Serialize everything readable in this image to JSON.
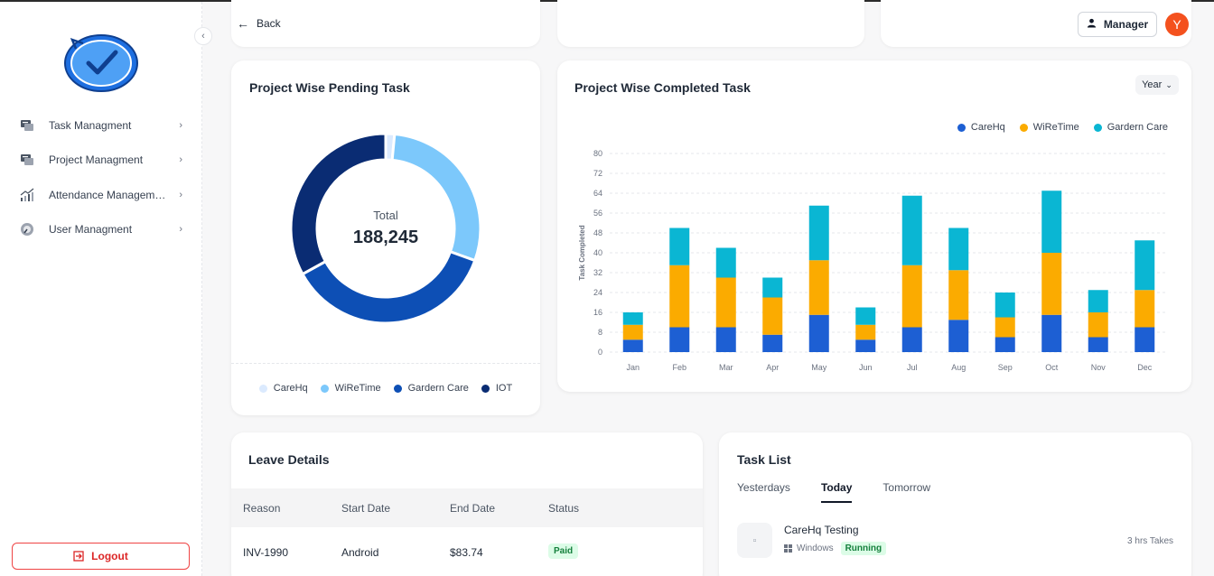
{
  "header": {
    "back_label": "Back",
    "role_label": "Manager",
    "avatar_initial": "Y"
  },
  "sidebar": {
    "items": [
      {
        "label": "Task Managment",
        "icon": "task-icon"
      },
      {
        "label": "Project Managment",
        "icon": "project-icon"
      },
      {
        "label": "Attendance Management",
        "icon": "attendance-chart-icon"
      },
      {
        "label": "User Managment",
        "icon": "user-gauge-icon"
      }
    ],
    "logout_label": "Logout"
  },
  "pending": {
    "title": "Project Wise Pending Task",
    "total_label": "Total",
    "total_value": "188,245",
    "legend": [
      "CareHq",
      "WiReTime",
      "Gardern Care",
      "IOT"
    ]
  },
  "completed": {
    "title": "Project Wise Completed Task",
    "period": "Year",
    "legend": [
      "CareHq",
      "WiReTime",
      "Gardern Care"
    ]
  },
  "chart_data": [
    {
      "type": "pie",
      "title": "Project Wise Pending Task",
      "categories": [
        "CareHq",
        "WiReTime",
        "Gardern Care",
        "IOT"
      ],
      "values": [
        1.5,
        29,
        36.5,
        33
      ],
      "colors": [
        "#dbeafe",
        "#7cc8fb",
        "#0d4fb5",
        "#0a2c73"
      ],
      "center_label": "Total",
      "center_value": "188,245",
      "legend": "bottom"
    },
    {
      "type": "bar",
      "stacked": true,
      "title": "Project Wise Completed Task",
      "ylabel": "Task Completed",
      "categories": [
        "Jan",
        "Feb",
        "Mar",
        "Apr",
        "May",
        "Jun",
        "Jul",
        "Aug",
        "Sep",
        "Oct",
        "Nov",
        "Dec"
      ],
      "series": [
        {
          "name": "CareHq",
          "color": "#1d5fd3",
          "values": [
            5,
            10,
            10,
            7,
            15,
            5,
            10,
            13,
            6,
            15,
            6,
            10
          ]
        },
        {
          "name": "WiReTime",
          "color": "#fbab00",
          "values": [
            6,
            25,
            20,
            15,
            22,
            6,
            25,
            20,
            8,
            25,
            10,
            15
          ]
        },
        {
          "name": "Gardern Care",
          "color": "#0ab6d3",
          "values": [
            5,
            15,
            12,
            8,
            22,
            7,
            28,
            17,
            10,
            25,
            9,
            20
          ]
        }
      ],
      "ylim": [
        0,
        80
      ],
      "yticks": [
        0,
        8,
        16,
        24,
        32,
        40,
        48,
        56,
        64,
        72,
        80
      ],
      "grid": true,
      "legend": "top-right"
    }
  ],
  "leave": {
    "title": "Leave Details",
    "columns": [
      "Reason",
      "Start Date",
      "End Date",
      "Status"
    ],
    "rows": [
      {
        "reason": "INV-1990",
        "start": "Android",
        "end": "$83.74",
        "status": "Paid"
      }
    ]
  },
  "tasks": {
    "title": "Task List",
    "tabs": [
      "Yesterdays",
      "Today",
      "Tomorrow"
    ],
    "active_tab": "Today",
    "items": [
      {
        "name": "CareHq Testing",
        "platform": "Windows",
        "status": "Running",
        "duration": "3 hrs Takes"
      }
    ]
  }
}
